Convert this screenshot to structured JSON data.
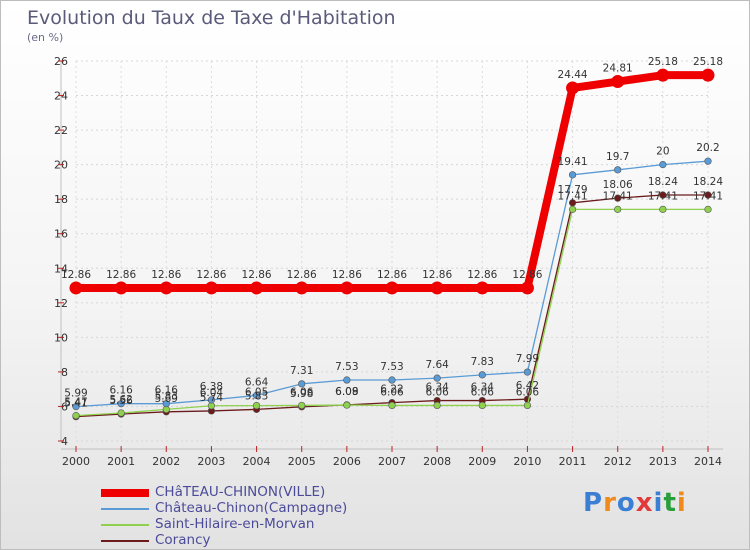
{
  "title": "Evolution du Taux de Taxe d'Habitation",
  "unit_label": "(en %)",
  "logo": {
    "text": "Proxiti",
    "colors": [
      "#3b7fd4",
      "#f08a1c",
      "#3b7fd4",
      "#e23a3a",
      "#3b7fd4",
      "#2a9e3a",
      "#f08a1c"
    ]
  },
  "chart_data": {
    "type": "line",
    "x": [
      2000,
      2001,
      2002,
      2003,
      2004,
      2005,
      2006,
      2007,
      2008,
      2009,
      2010,
      2011,
      2012,
      2013,
      2014
    ],
    "x_tick_labels": [
      "2000",
      "2001",
      "2002",
      "2003",
      "2004",
      "2005",
      "2006",
      "2007",
      "2008",
      "2009",
      "2010",
      "2011",
      "2012",
      "2013",
      "2014"
    ],
    "ylim": [
      4,
      26
    ],
    "y_ticks": [
      4,
      6,
      8,
      10,
      12,
      14,
      16,
      18,
      20,
      22,
      24,
      26
    ],
    "y_tick_labels": [
      "4",
      "6",
      "8",
      "10",
      "12",
      "14",
      "16",
      "18",
      "20",
      "22",
      "24",
      "26"
    ],
    "grid": true,
    "legend_position": "bottom-left",
    "series": [
      {
        "name": "CHâTEAU-CHINON(VILLE)",
        "color": "#ee0000",
        "values": [
          12.86,
          12.86,
          12.86,
          12.86,
          12.86,
          12.86,
          12.86,
          12.86,
          12.86,
          12.86,
          12.86,
          24.44,
          24.81,
          25.18,
          25.18
        ],
        "labels": [
          "12.86",
          "12.86",
          "12.86",
          "12.86",
          "12.86",
          "12.86",
          "12.86",
          "12.86",
          "12.86",
          "12.86",
          "12.86",
          "24.44",
          "24.81",
          "25.18",
          "25.18"
        ]
      },
      {
        "name": "Château-Chinon(Campagne)",
        "color": "#5b9bd5",
        "values": [
          5.99,
          6.16,
          6.16,
          6.38,
          6.64,
          7.31,
          7.53,
          7.53,
          7.64,
          7.83,
          7.99,
          19.41,
          19.7,
          20,
          20.2
        ],
        "labels": [
          "5.99",
          "6.16",
          "6.16",
          "6.38",
          "6.64",
          "7.31",
          "7.53",
          "7.53",
          "7.64",
          "7.83",
          "7.99",
          "19.41",
          "19.7",
          "20",
          "20.2"
        ]
      },
      {
        "name": "Saint-Hilaire-en-Morvan",
        "color": "#8fd14f",
        "values": [
          5.47,
          5.62,
          5.83,
          6.04,
          6.05,
          6.06,
          6.08,
          6.06,
          6.06,
          6.06,
          6.06,
          17.41,
          17.41,
          17.41,
          17.41
        ],
        "labels": [
          "5.47",
          "5.62",
          "5.83",
          "6.04",
          "6.05",
          "6.06",
          "6.08",
          "6.06",
          "6.06",
          "6.06",
          "6.06",
          "17.41",
          "17.41",
          "17.41",
          "17.41"
        ]
      },
      {
        "name": "Corancy",
        "color": "#6b1b1b",
        "values": [
          5.41,
          5.56,
          5.69,
          5.74,
          5.83,
          5.98,
          6.09,
          6.22,
          6.34,
          6.34,
          6.42,
          17.79,
          18.06,
          18.24,
          18.24
        ],
        "labels": [
          "5.41",
          "5.56",
          "5.69",
          "5.74",
          "5.83",
          "5.98",
          "6.09",
          "6.22",
          "6.34",
          "6.34",
          "6.42",
          "17.79",
          "18.06",
          "18.24",
          "18.24"
        ]
      }
    ]
  }
}
